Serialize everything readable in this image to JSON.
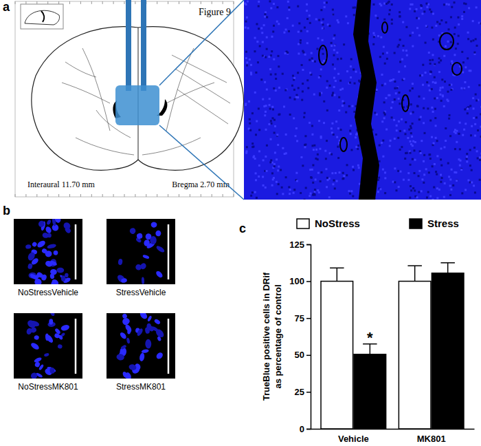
{
  "chart_data": {
    "type": "bar",
    "panel_label": "c",
    "categories": [
      "Vehicle",
      "MK801"
    ],
    "series": [
      {
        "name": "NoStress",
        "color": "#ffffff",
        "values": [
          100,
          100
        ],
        "errors": [
          9,
          10.5
        ]
      },
      {
        "name": "Stress",
        "color": "#000000",
        "values": [
          50.5,
          105.5
        ],
        "errors": [
          7,
          7
        ]
      }
    ],
    "ylabel": [
      "TrueBlue positive cells in DRif",
      "as percentage of control"
    ],
    "ylim": [
      0,
      125
    ],
    "yticks": [
      0,
      25,
      50,
      75,
      100,
      125
    ],
    "legend": "top",
    "annotations": [
      {
        "text": "*",
        "x": "Vehicle",
        "series": "Stress"
      }
    ]
  },
  "figure": {
    "panel_a": {
      "label": "a",
      "atlas_title": "Figure 9",
      "interaural": "Interaural 11.70 mm",
      "bregma": "Bregma 2.70 mm"
    },
    "panel_b": {
      "label": "b",
      "images": [
        "NoStressVehicle",
        "StressVehicle",
        "NoStressMK801",
        "StressMK801"
      ]
    }
  }
}
